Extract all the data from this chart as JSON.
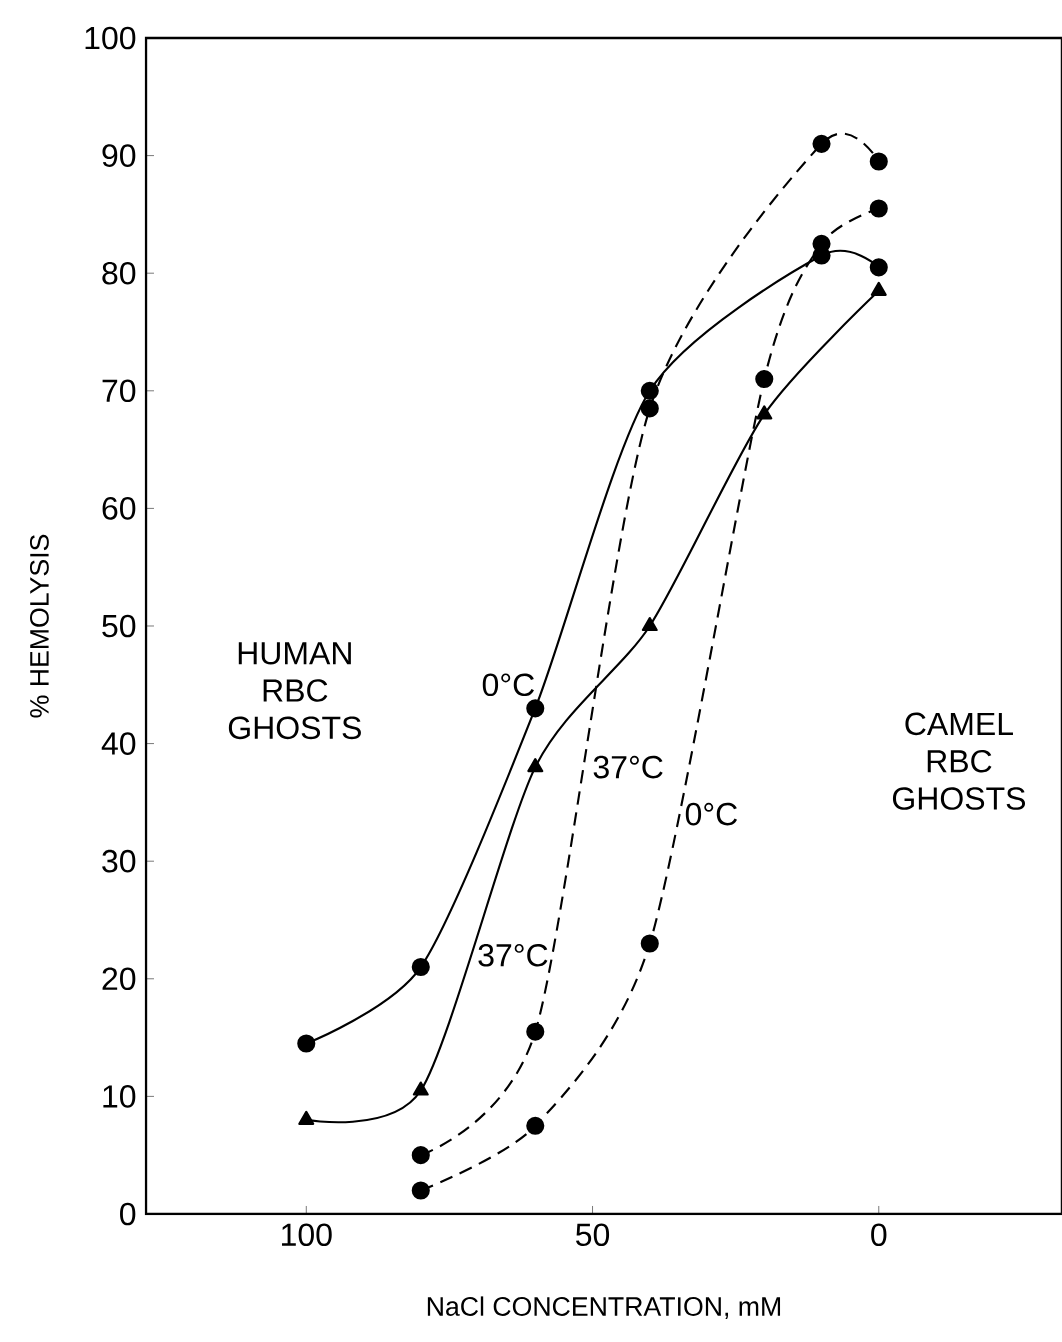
{
  "chart_data": {
    "type": "line",
    "xlabel": "NaCl  CONCENTRATION,  mM",
    "ylabel": "% HEMOLYSIS",
    "xlim": [
      128,
      -32
    ],
    "xticks": [
      100,
      50,
      0
    ],
    "ylim": [
      0,
      100
    ],
    "yticks": [
      0,
      10,
      20,
      30,
      40,
      50,
      60,
      70,
      80,
      90,
      100
    ],
    "grid": false,
    "legend": false,
    "annotations": [
      "HUMAN RBC GHOSTS",
      "CAMEL RBC GHOSTS"
    ],
    "series": [
      {
        "name": "0°C",
        "color": "#000000",
        "line_style": "solid",
        "marker": "circle",
        "x": [
          100,
          80,
          60,
          40,
          10,
          0
        ],
        "values": [
          14.5,
          21,
          43,
          70,
          81.5,
          80.5
        ]
      },
      {
        "name": "37°C",
        "color": "#000000",
        "line_style": "solid",
        "marker": "triangle",
        "x": [
          100,
          80,
          60,
          40,
          20,
          0
        ],
        "values": [
          8,
          10.5,
          38,
          50,
          68,
          78.5
        ]
      },
      {
        "name": "37°C",
        "color": "#000000",
        "line_style": "dashed",
        "marker": "circle",
        "x": [
          80,
          60,
          40,
          10,
          0
        ],
        "values": [
          5,
          15.5,
          68.5,
          91,
          89.5
        ]
      },
      {
        "name": "0°C",
        "color": "#000000",
        "line_style": "dashed",
        "marker": "circle",
        "x": [
          80,
          60,
          40,
          20,
          10,
          0
        ],
        "values": [
          2,
          7.5,
          23,
          71,
          82.5,
          85.5
        ]
      }
    ]
  }
}
